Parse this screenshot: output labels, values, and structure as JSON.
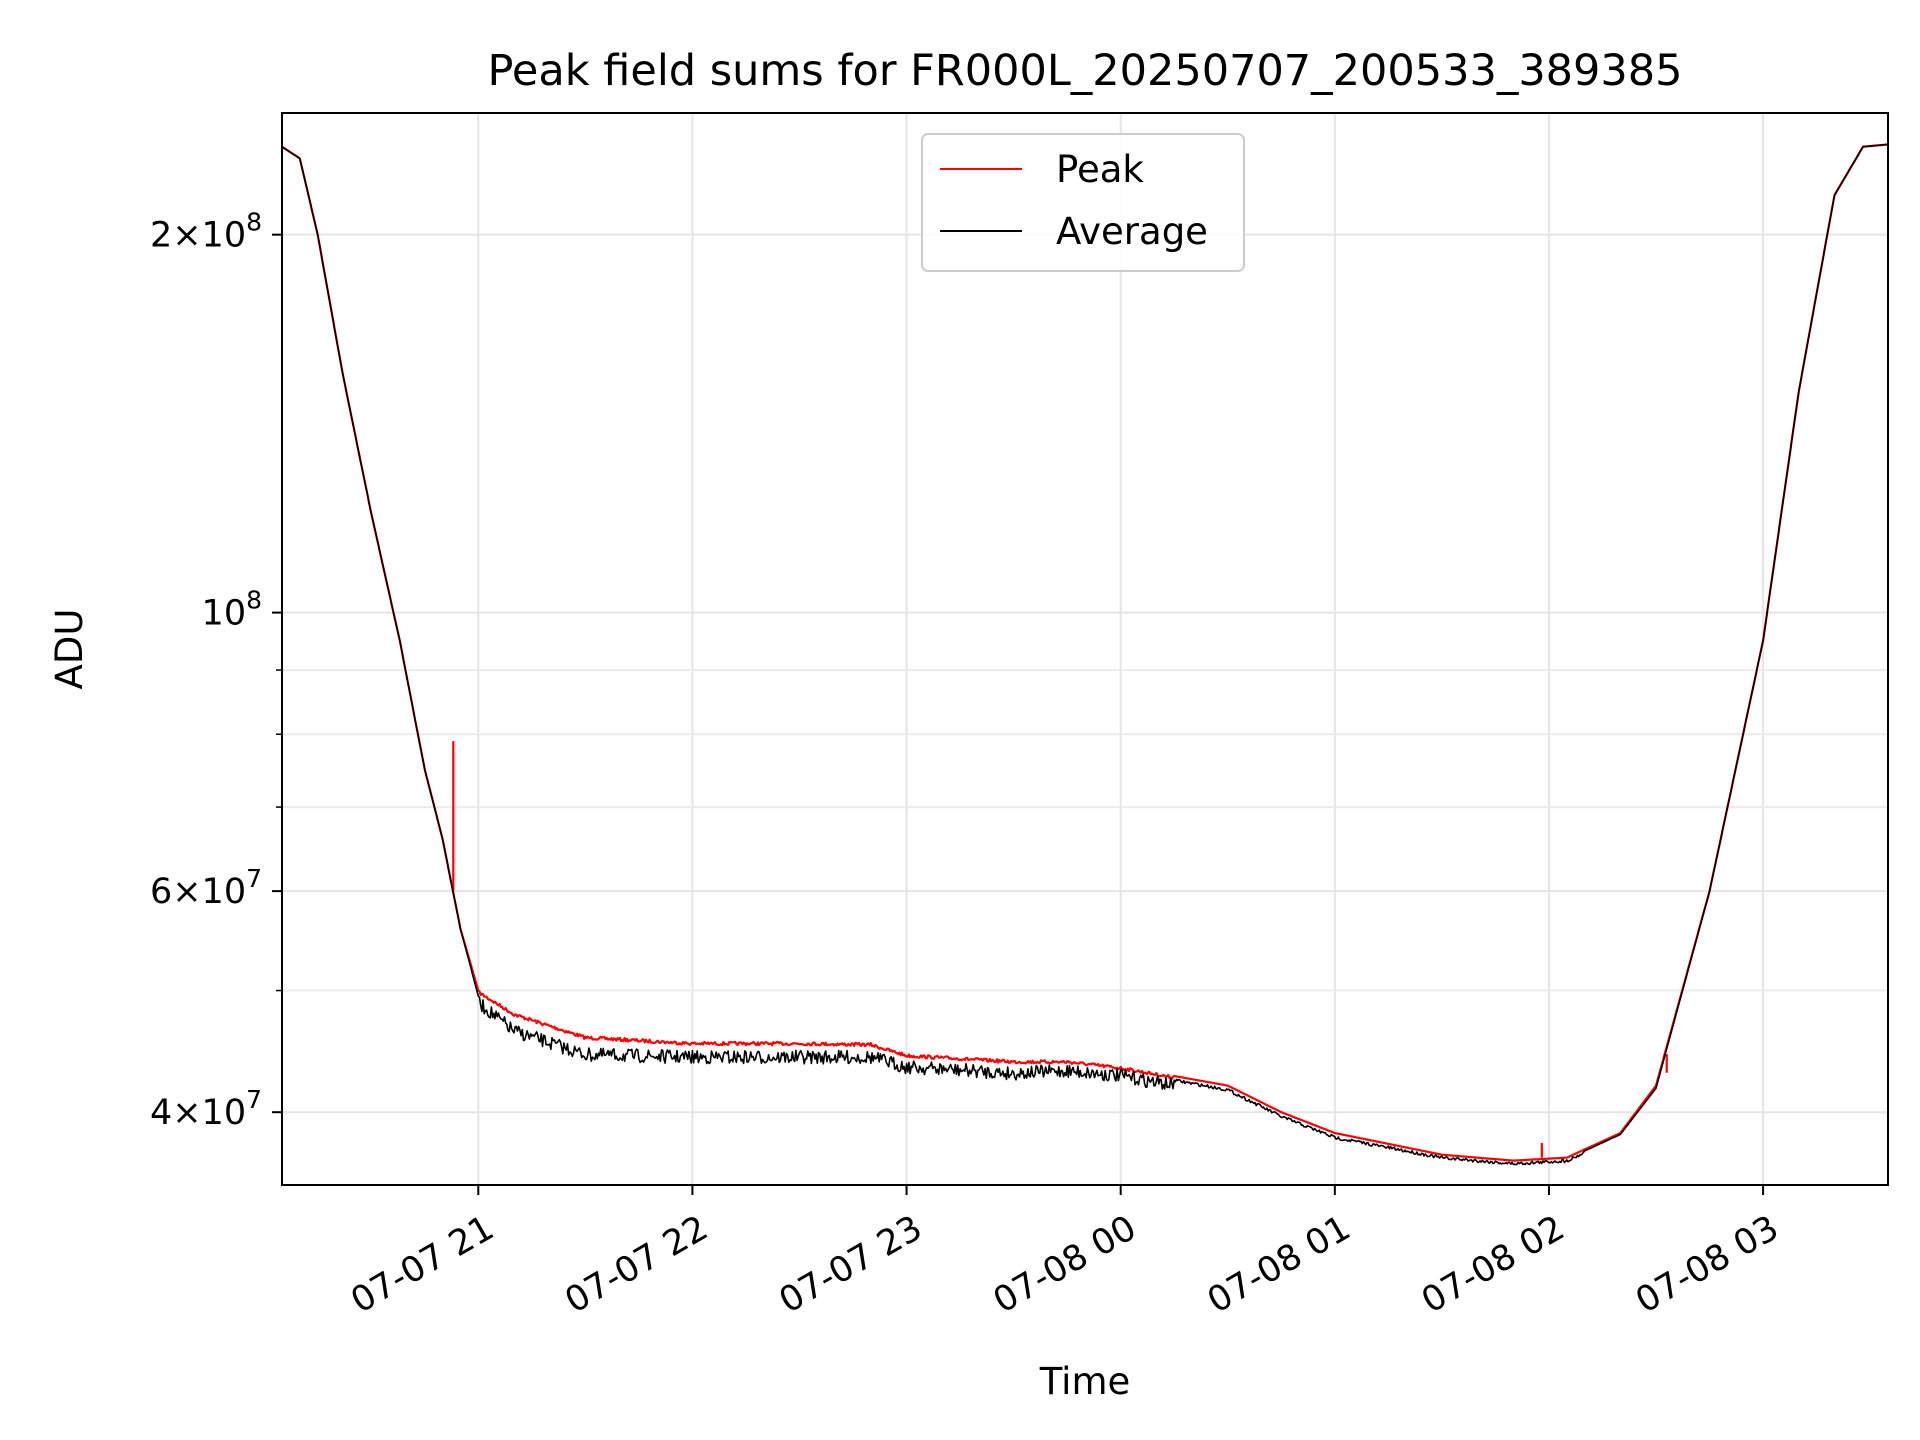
{
  "chart_data": {
    "type": "line",
    "title": "Peak field sums for FR000L_20250707_200533_389385",
    "xlabel": "Time",
    "ylabel": "ADU",
    "y_scale": "log",
    "ylim": [
      35000000,
      250000000
    ],
    "xlim": [
      "2025-07-07 20:05",
      "2025-07-08 03:35"
    ],
    "grid": true,
    "legend_position": "top-center",
    "x_ticks": [
      {
        "t": "2025-07-07 21:00",
        "label": "07-07 21"
      },
      {
        "t": "2025-07-07 22:00",
        "label": "07-07 22"
      },
      {
        "t": "2025-07-07 23:00",
        "label": "07-07 23"
      },
      {
        "t": "2025-07-08 00:00",
        "label": "07-08 00"
      },
      {
        "t": "2025-07-08 01:00",
        "label": "07-08 01"
      },
      {
        "t": "2025-07-08 02:00",
        "label": "07-08 02"
      },
      {
        "t": "2025-07-08 03:00",
        "label": "07-08 03"
      }
    ],
    "y_major_ticks": [
      {
        "v": 200000000,
        "base": "2×10",
        "exp": "8"
      },
      {
        "v": 100000000,
        "base": "10",
        "exp": "8"
      },
      {
        "v": 60000000,
        "base": "6×10",
        "exp": "7"
      },
      {
        "v": 40000000,
        "base": "4×10",
        "exp": "7"
      }
    ],
    "y_minor_ticks": [
      50000000,
      70000000,
      80000000,
      90000000
    ],
    "series": [
      {
        "name": "Peak",
        "color": "#ff0000",
        "points": [
          [
            "2025-07-07 20:05",
            235000000
          ],
          [
            "2025-07-07 20:10",
            230000000
          ],
          [
            "2025-07-07 20:15",
            200000000
          ],
          [
            "2025-07-07 20:22",
            155000000
          ],
          [
            "2025-07-07 20:30",
            120000000
          ],
          [
            "2025-07-07 20:38",
            95000000
          ],
          [
            "2025-07-07 20:45",
            75000000
          ],
          [
            "2025-07-07 20:50",
            66000000
          ],
          [
            "2025-07-07 20:55",
            56000000
          ],
          [
            "2025-07-07 21:00",
            50000000
          ],
          [
            "2025-07-07 21:10",
            48000000
          ],
          [
            "2025-07-07 21:30",
            46000000
          ],
          [
            "2025-07-07 22:00",
            45500000
          ],
          [
            "2025-07-07 22:30",
            45500000
          ],
          [
            "2025-07-07 22:50",
            45400000
          ],
          [
            "2025-07-07 23:00",
            44500000
          ],
          [
            "2025-07-07 23:30",
            44000000
          ],
          [
            "2025-07-07 23:45",
            44000000
          ],
          [
            "2025-07-08 00:00",
            43500000
          ],
          [
            "2025-07-08 00:30",
            42000000
          ],
          [
            "2025-07-08 00:45",
            40000000
          ],
          [
            "2025-07-08 01:00",
            38500000
          ],
          [
            "2025-07-08 01:30",
            37000000
          ],
          [
            "2025-07-08 01:50",
            36600000
          ],
          [
            "2025-07-08 02:05",
            36800000
          ],
          [
            "2025-07-08 02:20",
            38500000
          ],
          [
            "2025-07-08 02:30",
            42000000
          ],
          [
            "2025-07-08 02:45",
            60000000
          ],
          [
            "2025-07-08 03:00",
            95000000
          ],
          [
            "2025-07-08 03:10",
            150000000
          ],
          [
            "2025-07-08 03:20",
            215000000
          ],
          [
            "2025-07-08 03:28",
            235000000
          ],
          [
            "2025-07-08 03:35",
            236000000
          ]
        ],
        "spikes": [
          {
            "t": "2025-07-07 20:53",
            "from": 60000000,
            "to": 79000000
          },
          {
            "t": "2025-07-08 01:58",
            "from": 36800000,
            "to": 37800000
          },
          {
            "t": "2025-07-08 02:33",
            "from": 43000000,
            "to": 44500000
          }
        ]
      },
      {
        "name": "Average",
        "color": "#000000",
        "noise": true,
        "points": [
          [
            "2025-07-07 20:05",
            235000000
          ],
          [
            "2025-07-07 20:10",
            230000000
          ],
          [
            "2025-07-07 20:15",
            200000000
          ],
          [
            "2025-07-07 20:22",
            155000000
          ],
          [
            "2025-07-07 20:30",
            120000000
          ],
          [
            "2025-07-07 20:38",
            95000000
          ],
          [
            "2025-07-07 20:45",
            75000000
          ],
          [
            "2025-07-07 20:50",
            66000000
          ],
          [
            "2025-07-07 20:55",
            56000000
          ],
          [
            "2025-07-07 21:00",
            49500000
          ],
          [
            "2025-07-07 21:10",
            47000000
          ],
          [
            "2025-07-07 21:30",
            45000000
          ],
          [
            "2025-07-07 22:00",
            44800000
          ],
          [
            "2025-07-07 22:30",
            44800000
          ],
          [
            "2025-07-07 22:50",
            44800000
          ],
          [
            "2025-07-07 23:00",
            44000000
          ],
          [
            "2025-07-07 23:30",
            43500000
          ],
          [
            "2025-07-07 23:45",
            43700000
          ],
          [
            "2025-07-08 00:00",
            43300000
          ],
          [
            "2025-07-08 00:30",
            41800000
          ],
          [
            "2025-07-08 00:45",
            39800000
          ],
          [
            "2025-07-08 01:00",
            38300000
          ],
          [
            "2025-07-08 01:30",
            36900000
          ],
          [
            "2025-07-08 01:50",
            36500000
          ],
          [
            "2025-07-08 02:05",
            36700000
          ],
          [
            "2025-07-08 02:20",
            38400000
          ],
          [
            "2025-07-08 02:30",
            41800000
          ],
          [
            "2025-07-08 02:45",
            60000000
          ],
          [
            "2025-07-08 03:00",
            95000000
          ],
          [
            "2025-07-08 03:10",
            150000000
          ],
          [
            "2025-07-08 03:20",
            215000000
          ],
          [
            "2025-07-08 03:28",
            235000000
          ],
          [
            "2025-07-08 03:35",
            236000000
          ]
        ]
      }
    ]
  }
}
